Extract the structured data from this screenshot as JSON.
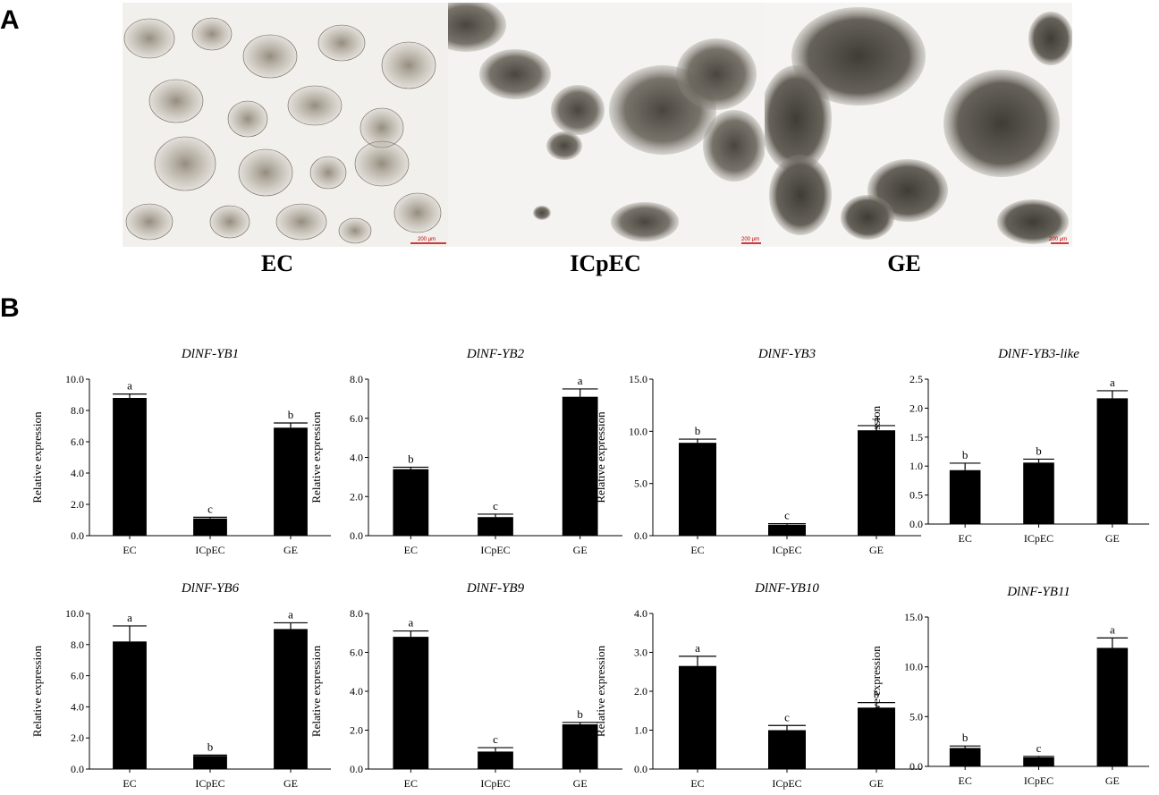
{
  "panel_a": {
    "letter": "A",
    "photos": [
      {
        "label": "EC",
        "scale_bar": "200 μm"
      },
      {
        "label": "ICpEC",
        "scale_bar": "200 μm"
      },
      {
        "label": "GE",
        "scale_bar": "200 μm"
      }
    ]
  },
  "panel_b": {
    "letter": "B"
  },
  "colors": {
    "bar": "#000000",
    "scale_bar": "#c00000"
  },
  "chart_data": [
    {
      "type": "bar",
      "title": "DlNF-YB1",
      "ylabel": "Relative expression",
      "categories": [
        "EC",
        "ICpEC",
        "GE"
      ],
      "values": [
        8.8,
        1.1,
        6.9
      ],
      "errors": [
        0.25,
        0.08,
        0.3
      ],
      "letters": [
        "a",
        "c",
        "b"
      ],
      "ylim": [
        0,
        10
      ],
      "yticks": [
        "0.0",
        "2.0",
        "4.0",
        "6.0",
        "8.0",
        "10.0"
      ]
    },
    {
      "type": "bar",
      "title": "DlNF-YB2",
      "ylabel": "Relative expression",
      "categories": [
        "EC",
        "ICpEC",
        "GE"
      ],
      "values": [
        3.4,
        0.95,
        7.1
      ],
      "errors": [
        0.1,
        0.15,
        0.4
      ],
      "letters": [
        "b",
        "c",
        "a"
      ],
      "ylim": [
        0,
        8
      ],
      "yticks": [
        "0.0",
        "2.0",
        "4.0",
        "6.0",
        "8.0"
      ]
    },
    {
      "type": "bar",
      "title": "DlNF-YB3",
      "ylabel": "Relative expression",
      "categories": [
        "EC",
        "ICpEC",
        "GE"
      ],
      "values": [
        8.9,
        1.05,
        10.1
      ],
      "errors": [
        0.35,
        0.1,
        0.45
      ],
      "letters": [
        "b",
        "c",
        "a"
      ],
      "ylim": [
        0,
        15
      ],
      "yticks": [
        "0.0",
        "5.0",
        "10.0",
        "15.0"
      ]
    },
    {
      "type": "bar",
      "title": "DlNF-YB3-like",
      "ylabel": "Relative expression",
      "categories": [
        "EC",
        "ICpEC",
        "GE"
      ],
      "values": [
        0.93,
        1.06,
        2.17
      ],
      "errors": [
        0.12,
        0.06,
        0.13
      ],
      "letters": [
        "b",
        "b",
        "a"
      ],
      "ylim": [
        0,
        2.5
      ],
      "yticks": [
        "0.0",
        "0.5",
        "1.0",
        "1.5",
        "2.0",
        "2.5"
      ]
    },
    {
      "type": "bar",
      "title": "DlNF-YB6",
      "ylabel": "Relative expression",
      "categories": [
        "EC",
        "ICpEC",
        "GE"
      ],
      "values": [
        8.2,
        0.85,
        9.0
      ],
      "errors": [
        1.0,
        0.05,
        0.4
      ],
      "letters": [
        "a",
        "b",
        "a"
      ],
      "ylim": [
        0,
        10
      ],
      "yticks": [
        "0.0",
        "2.0",
        "4.0",
        "6.0",
        "8.0",
        "10.0"
      ]
    },
    {
      "type": "bar",
      "title": "DlNF-YB9",
      "ylabel": "Relative expression",
      "categories": [
        "EC",
        "ICpEC",
        "GE"
      ],
      "values": [
        6.8,
        0.9,
        2.3
      ],
      "errors": [
        0.3,
        0.2,
        0.1
      ],
      "letters": [
        "a",
        "c",
        "b"
      ],
      "ylim": [
        0,
        8
      ],
      "yticks": [
        "0.0",
        "2.0",
        "4.0",
        "6.0",
        "8.0"
      ]
    },
    {
      "type": "bar",
      "title": "DlNF-YB10",
      "ylabel": "Relative expression",
      "categories": [
        "EC",
        "ICpEC",
        "GE"
      ],
      "values": [
        2.65,
        1.0,
        1.58
      ],
      "errors": [
        0.25,
        0.12,
        0.13
      ],
      "letters": [
        "a",
        "c",
        "b"
      ],
      "ylim": [
        0,
        4
      ],
      "yticks": [
        "0.0",
        "1.0",
        "2.0",
        "3.0",
        "4.0"
      ]
    },
    {
      "type": "bar",
      "title": "DlNF-YB11",
      "ylabel": "Relative expression",
      "categories": [
        "EC",
        "ICpEC",
        "GE"
      ],
      "values": [
        1.85,
        0.9,
        11.9
      ],
      "errors": [
        0.2,
        0.1,
        1.0
      ],
      "letters": [
        "b",
        "c",
        "a"
      ],
      "ylim": [
        0,
        15
      ],
      "yticks": [
        "0.0",
        "5.0",
        "10.0",
        "15.0"
      ]
    }
  ]
}
